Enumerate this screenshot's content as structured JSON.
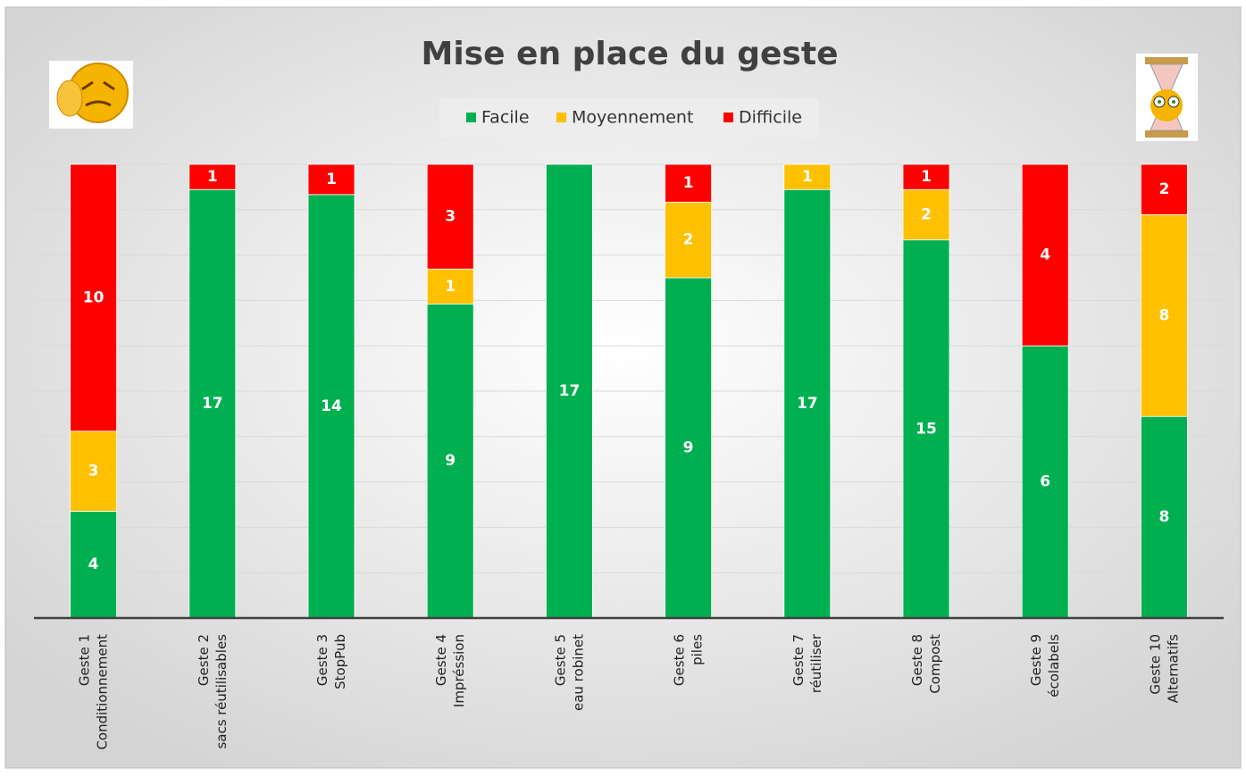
{
  "chart_data": {
    "type": "stacked_bar_percent",
    "title": "Mise en place du geste",
    "categories": [
      [
        "Geste 1",
        "Conditionnement"
      ],
      [
        "Geste 2",
        "sacs réutilisables"
      ],
      [
        "Geste 3",
        "StopPub"
      ],
      [
        "Geste 4",
        "Impréssion"
      ],
      [
        "Geste 5",
        "eau robinet"
      ],
      [
        "Geste 6",
        "piles"
      ],
      [
        "Geste 7",
        "réutiliser"
      ],
      [
        "Geste 8",
        "Compost"
      ],
      [
        "Geste 9",
        "écolabels"
      ],
      [
        "Geste 10",
        "Alternatifs"
      ]
    ],
    "series": [
      {
        "name": "Facile",
        "color": "#00b050",
        "values": [
          4,
          17,
          14,
          9,
          17,
          9,
          17,
          15,
          6,
          8
        ]
      },
      {
        "name": "Moyennement",
        "color": "#ffc000",
        "values": [
          3,
          null,
          null,
          1,
          null,
          2,
          1,
          2,
          null,
          8
        ]
      },
      {
        "name": "Difficile",
        "color": "#ff0000",
        "values": [
          10,
          1,
          1,
          3,
          null,
          1,
          null,
          1,
          4,
          2
        ]
      }
    ],
    "ylim": [
      0,
      100
    ],
    "yticks": [
      0,
      10,
      20,
      30,
      40,
      50,
      60,
      70,
      80,
      90,
      100
    ],
    "grid": true,
    "legend": "top"
  }
}
